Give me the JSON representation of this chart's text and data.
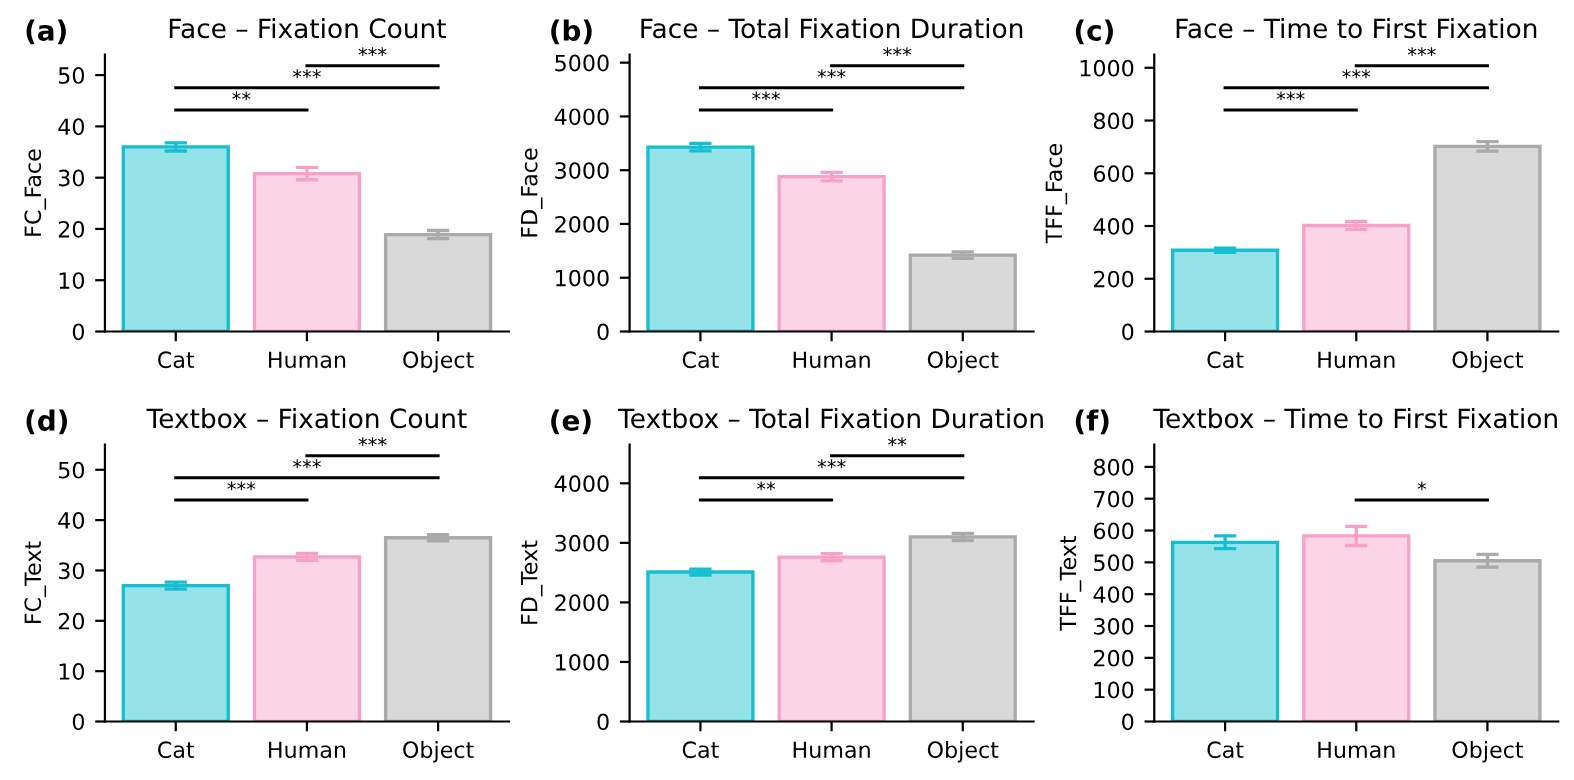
{
  "chart_data": [
    {
      "type": "bar",
      "title": "Face – Fixation Count",
      "ylabel": "FC_Face",
      "categories": [
        "Cat",
        "Human",
        "Object"
      ],
      "values": [
        36.0,
        30.8,
        18.9
      ],
      "errors": [
        0.8,
        1.2,
        0.8
      ],
      "colors": [
        "#17becf",
        "#f7a1c8",
        "#aaaaaa"
      ],
      "ylim": [
        0,
        54
      ],
      "yticks": [
        0,
        10,
        20,
        30,
        40,
        50
      ],
      "grid": false,
      "legend": false,
      "annotations": [
        "(a)",
        "**",
        "***",
        "***"
      ]
    },
    {
      "type": "bar",
      "title": "Face – Total Fixation Duration",
      "ylabel": "FD_Face",
      "categories": [
        "Cat",
        "Human",
        "Object"
      ],
      "values": [
        3430,
        2880,
        1420
      ],
      "errors": [
        70,
        80,
        60
      ],
      "colors": [
        "#17becf",
        "#f7a1c8",
        "#aaaaaa"
      ],
      "ylim": [
        0,
        5150
      ],
      "yticks": [
        0,
        1000,
        2000,
        3000,
        4000,
        5000
      ],
      "grid": false,
      "legend": false,
      "annotations": [
        "(b)",
        "***",
        "***",
        "***"
      ]
    },
    {
      "type": "bar",
      "title": "Face – Time to First Fixation",
      "ylabel": "TFF_Face",
      "categories": [
        "Cat",
        "Human",
        "Object"
      ],
      "values": [
        308,
        402,
        702
      ],
      "errors": [
        8,
        15,
        18
      ],
      "colors": [
        "#17becf",
        "#f7a1c8",
        "#aaaaaa"
      ],
      "ylim": [
        0,
        1050
      ],
      "yticks": [
        0,
        200,
        400,
        600,
        800,
        1000
      ],
      "grid": false,
      "legend": false,
      "annotations": [
        "(c)",
        "***",
        "***",
        "***"
      ]
    },
    {
      "type": "bar",
      "title": "Textbox – Fixation Count",
      "ylabel": "FC_Text",
      "categories": [
        "Cat",
        "Human",
        "Object"
      ],
      "values": [
        27.0,
        32.7,
        36.5
      ],
      "errors": [
        0.7,
        0.7,
        0.6
      ],
      "colors": [
        "#17becf",
        "#f7a1c8",
        "#aaaaaa"
      ],
      "ylim": [
        0,
        55
      ],
      "yticks": [
        0,
        10,
        20,
        30,
        40,
        50
      ],
      "grid": false,
      "legend": false,
      "annotations": [
        "(d)",
        "***",
        "***",
        "***"
      ]
    },
    {
      "type": "bar",
      "title": "Textbox – Total Fixation Duration",
      "ylabel": "FD_Text",
      "categories": [
        "Cat",
        "Human",
        "Object"
      ],
      "values": [
        2510,
        2760,
        3100
      ],
      "errors": [
        50,
        60,
        60
      ],
      "colors": [
        "#17becf",
        "#f7a1c8",
        "#aaaaaa"
      ],
      "ylim": [
        0,
        4650
      ],
      "yticks": [
        0,
        1000,
        2000,
        3000,
        4000
      ],
      "grid": false,
      "legend": false,
      "annotations": [
        "(e)",
        "**",
        "***",
        "**"
      ]
    },
    {
      "type": "bar",
      "title": "Textbox – Time to First Fixation",
      "ylabel": "TFF_Text",
      "categories": [
        "Cat",
        "Human",
        "Object"
      ],
      "values": [
        563,
        583,
        505
      ],
      "errors": [
        20,
        30,
        20
      ],
      "colors": [
        "#17becf",
        "#f7a1c8",
        "#aaaaaa"
      ],
      "ylim": [
        0,
        870
      ],
      "yticks": [
        0,
        100,
        200,
        300,
        400,
        500,
        600,
        700,
        800
      ],
      "grid": false,
      "legend": false,
      "annotations": [
        "(f)",
        "*"
      ]
    }
  ]
}
